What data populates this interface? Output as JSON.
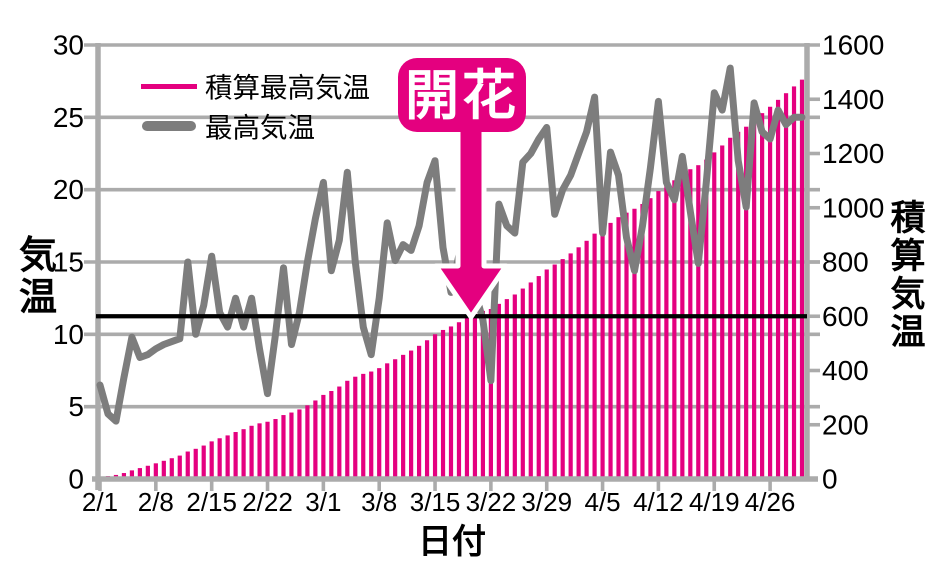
{
  "chart_data": {
    "type": "combo",
    "title": "",
    "xlabel": "日付",
    "ylabel_left": "気温",
    "ylabel_right": "積算気温",
    "grid": true,
    "start_date": "2/1",
    "end_date": "4/30",
    "num_days": 89,
    "x_tick_labels": [
      "2/1",
      "2/8",
      "2/15",
      "2/22",
      "3/1",
      "3/8",
      "3/15",
      "3/22",
      "3/29",
      "4/5",
      "4/12",
      "4/19",
      "4/26"
    ],
    "x_tick_day_indices": [
      0,
      7,
      14,
      21,
      28,
      35,
      42,
      49,
      56,
      63,
      70,
      77,
      84
    ],
    "y_left": {
      "min": 0,
      "max": 30,
      "step": 5,
      "tick_labels": [
        "0",
        "5",
        "10",
        "15",
        "20",
        "25",
        "30"
      ]
    },
    "y_right": {
      "min": 0,
      "max": 1600,
      "step": 200,
      "tick_labels": [
        "0",
        "200",
        "400",
        "600",
        "800",
        "1000",
        "1200",
        "1400",
        "1600"
      ]
    },
    "legend": [
      {
        "label": "積算最高気温",
        "color": "#e4007f",
        "style": "thin-line"
      },
      {
        "label": "最高気温",
        "color": "#7d7d7d",
        "style": "thick-line"
      }
    ],
    "threshold_line": {
      "value_right_axis": 600,
      "color": "#000000"
    },
    "annotation": {
      "label": "開花",
      "day_index": 47,
      "date": "3/20",
      "points_to": "cumulative max temperature reaching 600"
    },
    "series": [
      {
        "name": "最高気温",
        "type": "line",
        "axis": "left",
        "color": "#7d7d7d",
        "values": [
          6.5,
          4.5,
          4.0,
          7.0,
          9.8,
          8.4,
          8.6,
          9.0,
          9.3,
          9.5,
          9.7,
          15.0,
          10.0,
          12.0,
          15.4,
          11.5,
          10.5,
          12.5,
          10.5,
          12.5,
          9.0,
          5.9,
          10.0,
          14.6,
          9.3,
          11.5,
          15.0,
          18.0,
          20.5,
          14.4,
          16.5,
          21.2,
          15.0,
          10.5,
          8.6,
          12.5,
          17.7,
          15.1,
          16.2,
          15.8,
          17.5,
          20.5,
          22.0,
          16.0,
          12.9,
          15.5,
          18.0,
          13.0,
          11.0,
          6.8,
          19.0,
          17.5,
          17.0,
          21.9,
          22.5,
          23.5,
          24.3,
          18.3,
          20.0,
          21.0,
          22.5,
          24.0,
          26.4,
          17.0,
          22.6,
          21.0,
          16.7,
          14.4,
          17.5,
          21.5,
          26.1,
          20.5,
          19.3,
          22.3,
          18.5,
          14.9,
          20.5,
          26.7,
          25.5,
          28.4,
          22.0,
          18.8,
          26.0,
          24.0,
          23.5,
          25.5,
          24.5,
          25.0,
          25.0
        ]
      },
      {
        "name": "積算最高気温",
        "type": "bar",
        "axis": "right",
        "color": "#e4007f",
        "note": "running total of daily max temperature since 2/1",
        "values": [
          6.5,
          11.0,
          15.0,
          22.0,
          31.8,
          40.2,
          48.8,
          57.8,
          67.1,
          76.6,
          86.3,
          101.3,
          111.3,
          123.3,
          138.7,
          150.2,
          160.7,
          173.2,
          183.7,
          196.2,
          205.2,
          211.1,
          221.1,
          235.7,
          245.0,
          256.5,
          271.5,
          289.5,
          310.0,
          324.4,
          340.9,
          362.1,
          377.1,
          387.6,
          396.2,
          408.7,
          426.4,
          441.5,
          457.7,
          473.5,
          491.0,
          511.5,
          533.5,
          549.5,
          562.4,
          577.9,
          595.9,
          608.9,
          619.9,
          626.7,
          645.7,
          663.2,
          680.2,
          702.1,
          724.6,
          748.1,
          772.4,
          790.7,
          810.7,
          831.7,
          854.2,
          878.2,
          904.6,
          921.6,
          944.2,
          965.2,
          981.9,
          996.3,
          1013.8,
          1035.3,
          1061.4,
          1081.9,
          1101.2,
          1123.5,
          1142.0,
          1156.9,
          1177.4,
          1204.1,
          1229.6,
          1258.0,
          1280.0,
          1298.8,
          1324.8,
          1348.8,
          1372.3,
          1397.8,
          1422.3,
          1447.3,
          1472.3
        ]
      }
    ],
    "colors": {
      "accent_pink": "#e4007f",
      "line_gray": "#7d7d7d",
      "grid_gray": "#ababab",
      "threshold_black": "#000000",
      "text_black": "#000000",
      "annotation_text": "#ffffff"
    }
  }
}
